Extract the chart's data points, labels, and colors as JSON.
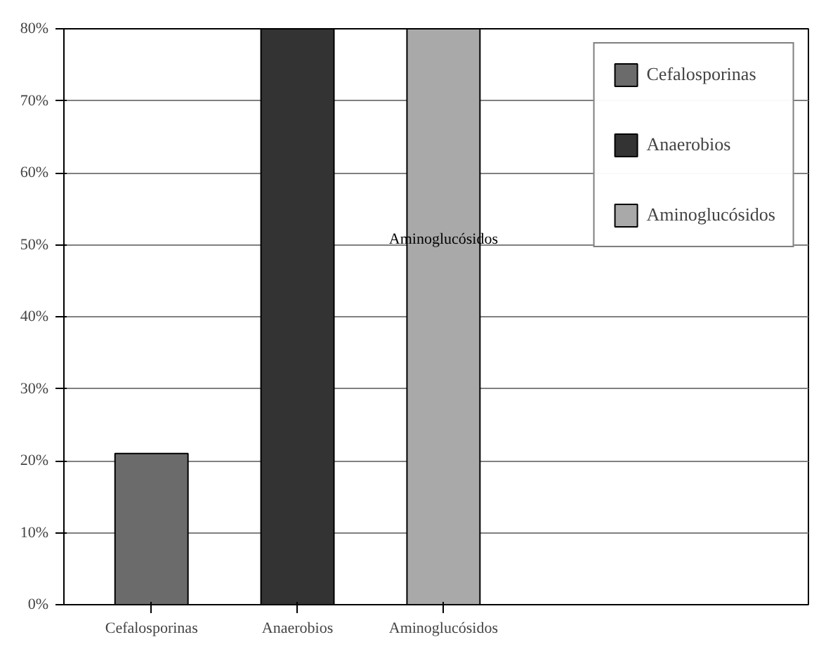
{
  "chart_data": {
    "type": "bar",
    "categories": [
      "Cefalosporinas",
      "Anaerobios",
      "Aminoglucósidos"
    ],
    "series": [
      {
        "name": "Cefalosporinas",
        "color": "#6b6b6b",
        "values": [
          21,
          null,
          null
        ]
      },
      {
        "name": "Anaerobios",
        "color": "#333333",
        "values": [
          null,
          80,
          null
        ]
      },
      {
        "name": "Aminoglucósidos",
        "color": "#a9a9a9",
        "values": [
          null,
          null,
          80
        ]
      }
    ],
    "ylim": [
      0,
      80
    ],
    "yticks": [
      {
        "value": 0,
        "label": "0%"
      },
      {
        "value": 10,
        "label": "10%"
      },
      {
        "value": 20,
        "label": "20%"
      },
      {
        "value": 30,
        "label": "30%"
      },
      {
        "value": 40,
        "label": "40%"
      },
      {
        "value": 50,
        "label": "50%"
      },
      {
        "value": 60,
        "label": "60%"
      },
      {
        "value": 70,
        "label": "70%"
      },
      {
        "value": 80,
        "label": "80%"
      }
    ],
    "annotations": [
      "Aminoglucósidos"
    ],
    "grid": "y",
    "legend": "right"
  }
}
